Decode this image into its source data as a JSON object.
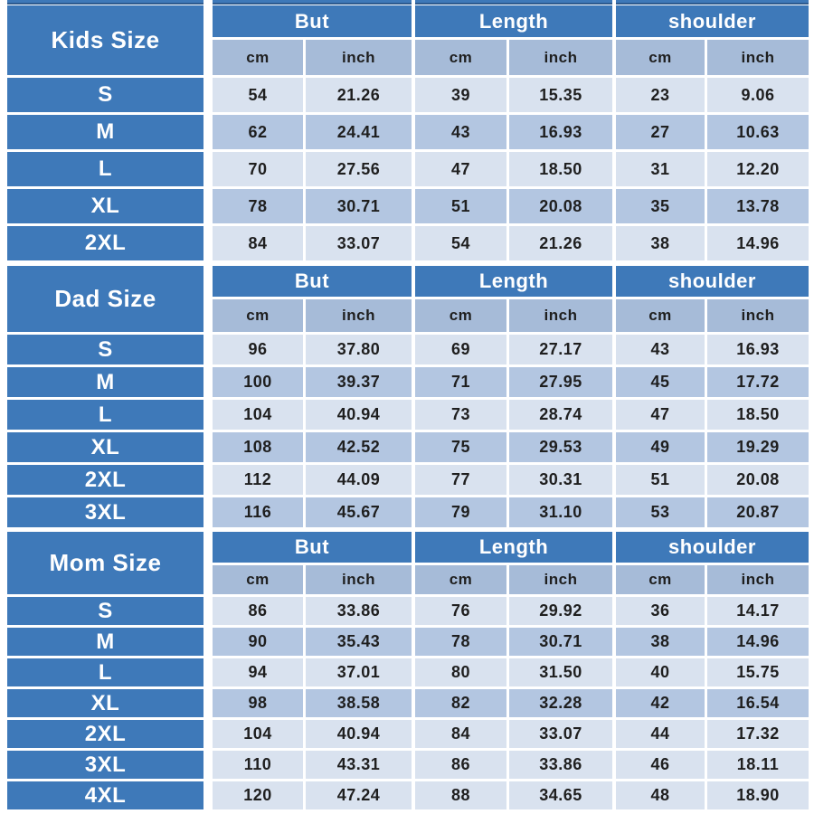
{
  "colors": {
    "header_blue": "#3E79B9",
    "strip_edge": "#2E5B8F",
    "subheader_blue": "#A6BBD8",
    "row_light": "#D9E2EF",
    "row_medium": "#B3C6E1",
    "text_dark": "#1F1F1F"
  },
  "chart_data": {
    "type": "table",
    "column_groups": [
      {
        "label": "But",
        "units": [
          "cm",
          "inch"
        ]
      },
      {
        "label": "Length",
        "units": [
          "cm",
          "inch"
        ]
      },
      {
        "label": "shoulder",
        "units": [
          "cm",
          "inch"
        ]
      }
    ],
    "sections": [
      {
        "label": "Kids Size",
        "rows": [
          {
            "size": "S",
            "shade": "light",
            "values": [
              "54",
              "21.26",
              "39",
              "15.35",
              "23",
              "9.06"
            ]
          },
          {
            "size": "M",
            "shade": "medium",
            "values": [
              "62",
              "24.41",
              "43",
              "16.93",
              "27",
              "10.63"
            ]
          },
          {
            "size": "L",
            "shade": "light",
            "values": [
              "70",
              "27.56",
              "47",
              "18.50",
              "31",
              "12.20"
            ]
          },
          {
            "size": "XL",
            "shade": "medium",
            "values": [
              "78",
              "30.71",
              "51",
              "20.08",
              "35",
              "13.78"
            ]
          },
          {
            "size": "2XL",
            "shade": "light",
            "values": [
              "84",
              "33.07",
              "54",
              "21.26",
              "38",
              "14.96"
            ]
          }
        ]
      },
      {
        "label": "Dad Size",
        "rows": [
          {
            "size": "S",
            "shade": "light",
            "values": [
              "96",
              "37.80",
              "69",
              "27.17",
              "43",
              "16.93"
            ]
          },
          {
            "size": "M",
            "shade": "medium",
            "values": [
              "100",
              "39.37",
              "71",
              "27.95",
              "45",
              "17.72"
            ]
          },
          {
            "size": "L",
            "shade": "light",
            "values": [
              "104",
              "40.94",
              "73",
              "28.74",
              "47",
              "18.50"
            ]
          },
          {
            "size": "XL",
            "shade": "medium",
            "values": [
              "108",
              "42.52",
              "75",
              "29.53",
              "49",
              "19.29"
            ]
          },
          {
            "size": "2XL",
            "shade": "light",
            "values": [
              "112",
              "44.09",
              "77",
              "30.31",
              "51",
              "20.08"
            ]
          },
          {
            "size": "3XL",
            "shade": "medium",
            "values": [
              "116",
              "45.67",
              "79",
              "31.10",
              "53",
              "20.87"
            ]
          }
        ]
      },
      {
        "label": "Mom Size",
        "rows": [
          {
            "size": "S",
            "shade": "light",
            "values": [
              "86",
              "33.86",
              "76",
              "29.92",
              "36",
              "14.17"
            ]
          },
          {
            "size": "M",
            "shade": "medium",
            "values": [
              "90",
              "35.43",
              "78",
              "30.71",
              "38",
              "14.96"
            ]
          },
          {
            "size": "L",
            "shade": "light",
            "values": [
              "94",
              "37.01",
              "80",
              "31.50",
              "40",
              "15.75"
            ]
          },
          {
            "size": "XL",
            "shade": "medium",
            "values": [
              "98",
              "38.58",
              "82",
              "32.28",
              "42",
              "16.54"
            ]
          },
          {
            "size": "2XL",
            "shade": "light",
            "values": [
              "104",
              "40.94",
              "84",
              "33.07",
              "44",
              "17.32"
            ]
          },
          {
            "size": "3XL",
            "shade": "light",
            "values": [
              "110",
              "43.31",
              "86",
              "33.86",
              "46",
              "18.11"
            ]
          },
          {
            "size": "4XL",
            "shade": "light",
            "values": [
              "120",
              "47.24",
              "88",
              "34.65",
              "48",
              "18.90"
            ]
          }
        ]
      }
    ]
  }
}
